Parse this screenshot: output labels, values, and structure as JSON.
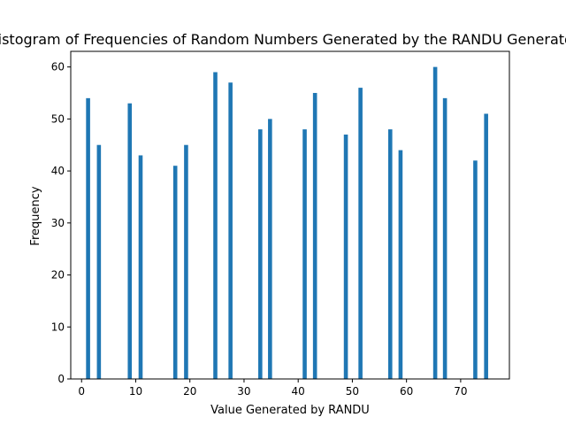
{
  "chart_data": {
    "type": "bar",
    "title": "Histogram of Frequencies of Random Numbers Generated by the RANDU Generator",
    "xlabel": "Value Generated by RANDU",
    "ylabel": "Frequency",
    "xlim": [
      -2,
      79
    ],
    "ylim": [
      0,
      63
    ],
    "xticks": [
      0,
      10,
      20,
      30,
      40,
      50,
      60,
      70
    ],
    "yticks": [
      0,
      10,
      20,
      30,
      40,
      50,
      60
    ],
    "bar_width": 0.75,
    "color": "#1f77b4",
    "grid": false,
    "x": [
      1.2,
      3.2,
      8.9,
      10.9,
      17.3,
      19.3,
      24.7,
      27.5,
      33.0,
      34.8,
      41.2,
      43.1,
      48.8,
      51.5,
      57.0,
      58.9,
      65.3,
      67.1,
      72.7,
      74.7
    ],
    "values": [
      54,
      45,
      53,
      43,
      41,
      45,
      59,
      57,
      48,
      50,
      48,
      55,
      47,
      56,
      48,
      44,
      60,
      54,
      42,
      51
    ]
  }
}
